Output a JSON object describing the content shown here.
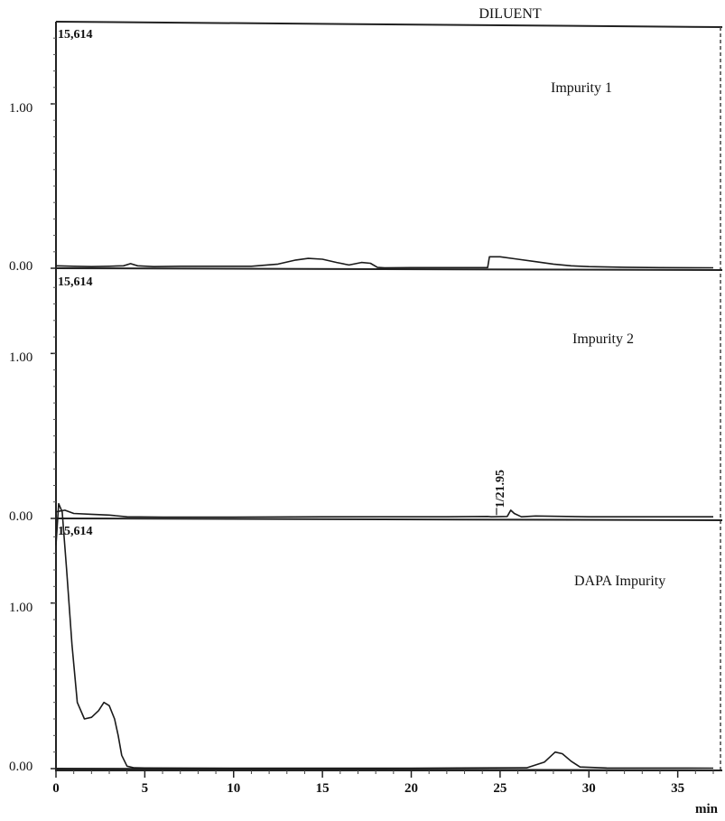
{
  "header": {
    "title": "DILUENT"
  },
  "chart_data": [
    {
      "type": "line",
      "panel_label": "Impurity 1",
      "corner_value": "15,614",
      "ylim": [
        0,
        1.5
      ],
      "xlim": [
        0,
        37
      ],
      "y_ticks": [
        {
          "value": 0,
          "label": "0.00"
        },
        {
          "value": 1,
          "label": "1.00"
        }
      ],
      "series": [
        {
          "x": [
            0,
            1,
            2,
            3,
            3.8,
            4.2,
            4.6,
            5.5,
            7,
            9,
            11,
            12.5,
            13.5,
            14.2,
            15,
            15.8,
            16.5,
            17.2,
            17.7,
            18.1,
            18.5,
            20,
            22,
            23.5,
            24.3,
            24.4,
            25,
            26,
            27,
            28,
            29,
            30,
            32,
            34,
            37
          ],
          "y": [
            0.015,
            0.012,
            0.01,
            0.012,
            0.015,
            0.028,
            0.015,
            0.01,
            0.012,
            0.012,
            0.012,
            0.025,
            0.05,
            0.06,
            0.055,
            0.035,
            0.02,
            0.035,
            0.03,
            0.005,
            0.003,
            0.004,
            0.004,
            0.004,
            0.004,
            0.07,
            0.07,
            0.055,
            0.04,
            0.025,
            0.015,
            0.01,
            0.006,
            0.004,
            0.003
          ]
        }
      ]
    },
    {
      "type": "line",
      "panel_label": "Impurity 2",
      "corner_value": "15,614",
      "ylim": [
        0,
        1.5
      ],
      "xlim": [
        0,
        37
      ],
      "y_ticks": [
        {
          "value": 0,
          "label": "0.00"
        },
        {
          "value": 1,
          "label": "1.00"
        }
      ],
      "series": [
        {
          "x": [
            0,
            0.5,
            1,
            2,
            3,
            4,
            6,
            10,
            15,
            18,
            22,
            24.3,
            24.5,
            25.4,
            25.6,
            25.8,
            26.2,
            27,
            30,
            37
          ],
          "y": [
            0.04,
            0.05,
            0.03,
            0.025,
            0.02,
            0.01,
            0.008,
            0.008,
            0.01,
            0.01,
            0.01,
            0.012,
            0.01,
            0.012,
            0.05,
            0.03,
            0.01,
            0.015,
            0.01,
            0.01
          ]
        }
      ],
      "annotations": [
        {
          "x": 24.8,
          "y": 0.02,
          "text": "1/21.95"
        }
      ]
    },
    {
      "type": "line",
      "panel_label": "DAPA Impurity",
      "corner_value": "15,614",
      "ylim": [
        0,
        1.5
      ],
      "xlim": [
        0,
        37
      ],
      "y_ticks": [
        {
          "value": 0,
          "label": "0.00"
        },
        {
          "value": 1,
          "label": "1.00"
        }
      ],
      "series": [
        {
          "x": [
            0,
            0.15,
            0.35,
            0.6,
            0.9,
            1.2,
            1.6,
            2.0,
            2.4,
            2.7,
            3.0,
            3.3,
            3.5,
            3.7,
            4.0,
            4.4,
            5,
            10,
            20,
            26.5,
            27.5,
            28.1,
            28.5,
            29,
            29.5,
            31,
            37
          ],
          "y": [
            1.35,
            1.6,
            1.55,
            1.2,
            0.75,
            0.4,
            0.3,
            0.31,
            0.35,
            0.4,
            0.38,
            0.3,
            0.2,
            0.08,
            0.015,
            0.005,
            0.004,
            0.003,
            0.003,
            0.005,
            0.04,
            0.1,
            0.09,
            0.045,
            0.01,
            0.004,
            0.003
          ]
        }
      ]
    }
  ],
  "x_axis": {
    "ticks": [
      {
        "value": 0,
        "label": "0"
      },
      {
        "value": 5,
        "label": "5"
      },
      {
        "value": 10,
        "label": "10"
      },
      {
        "value": 15,
        "label": "15"
      },
      {
        "value": 20,
        "label": "20"
      },
      {
        "value": 25,
        "label": "25"
      },
      {
        "value": 30,
        "label": "30"
      },
      {
        "value": 35,
        "label": "35"
      }
    ],
    "unit": "min"
  }
}
